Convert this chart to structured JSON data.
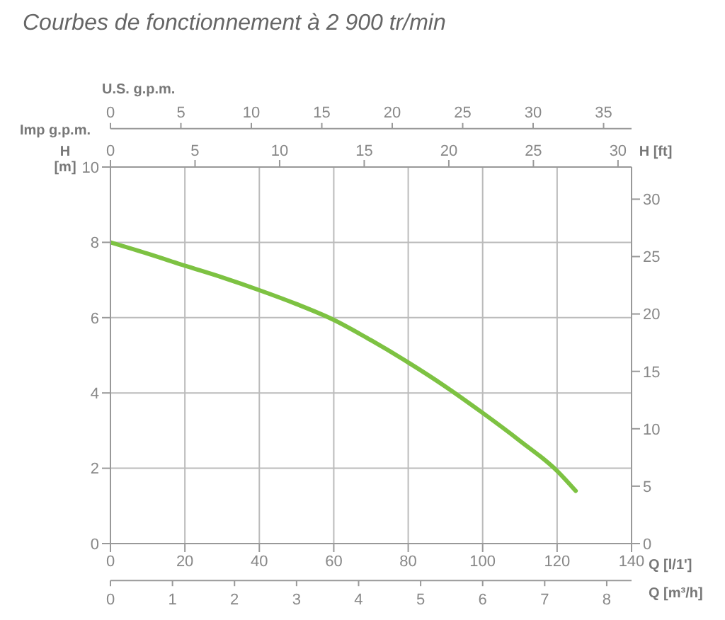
{
  "chart_data": {
    "type": "line",
    "title": "Courbes de fonctionnement à 2 900 tr/min",
    "xlabel": "Q [l/1']",
    "ylabel": "H [m]",
    "y2label": "H [ft]",
    "x2label": "Imp g.p.m.",
    "xlim": [
      0,
      140
    ],
    "xticks": [
      0,
      20,
      40,
      60,
      80,
      100,
      120,
      140
    ],
    "x2lim": [
      0,
      30.8
    ],
    "x2ticks": [
      0,
      5,
      10,
      15,
      20,
      25,
      30
    ],
    "ylim": [
      0,
      10
    ],
    "yticks": [
      0,
      2,
      4,
      6,
      8,
      10
    ],
    "y2lim": [
      0,
      32.8
    ],
    "y2ticks": [
      0,
      5,
      10,
      15,
      20,
      25,
      30
    ],
    "grid": true,
    "marker": "none",
    "line_style": "solid",
    "annotations": [
      "U.S. g.p.m.",
      "0",
      "5",
      "10",
      "15",
      "20",
      "25",
      "30",
      "35",
      "Q [m³/h]",
      "0",
      "1",
      "2",
      "3",
      "4",
      "5",
      "6",
      "7",
      "8"
    ],
    "series": [
      {
        "color": "#7dc242",
        "x": [
          0,
          10,
          20,
          30,
          40,
          50,
          60,
          70,
          80,
          90,
          100,
          110,
          120,
          125
        ],
        "values": [
          8,
          7.7,
          7.38,
          7.07,
          6.73,
          6.36,
          5.94,
          5.4,
          4.81,
          4.17,
          3.47,
          2.73,
          1.93,
          1.4
        ]
      }
    ]
  }
}
